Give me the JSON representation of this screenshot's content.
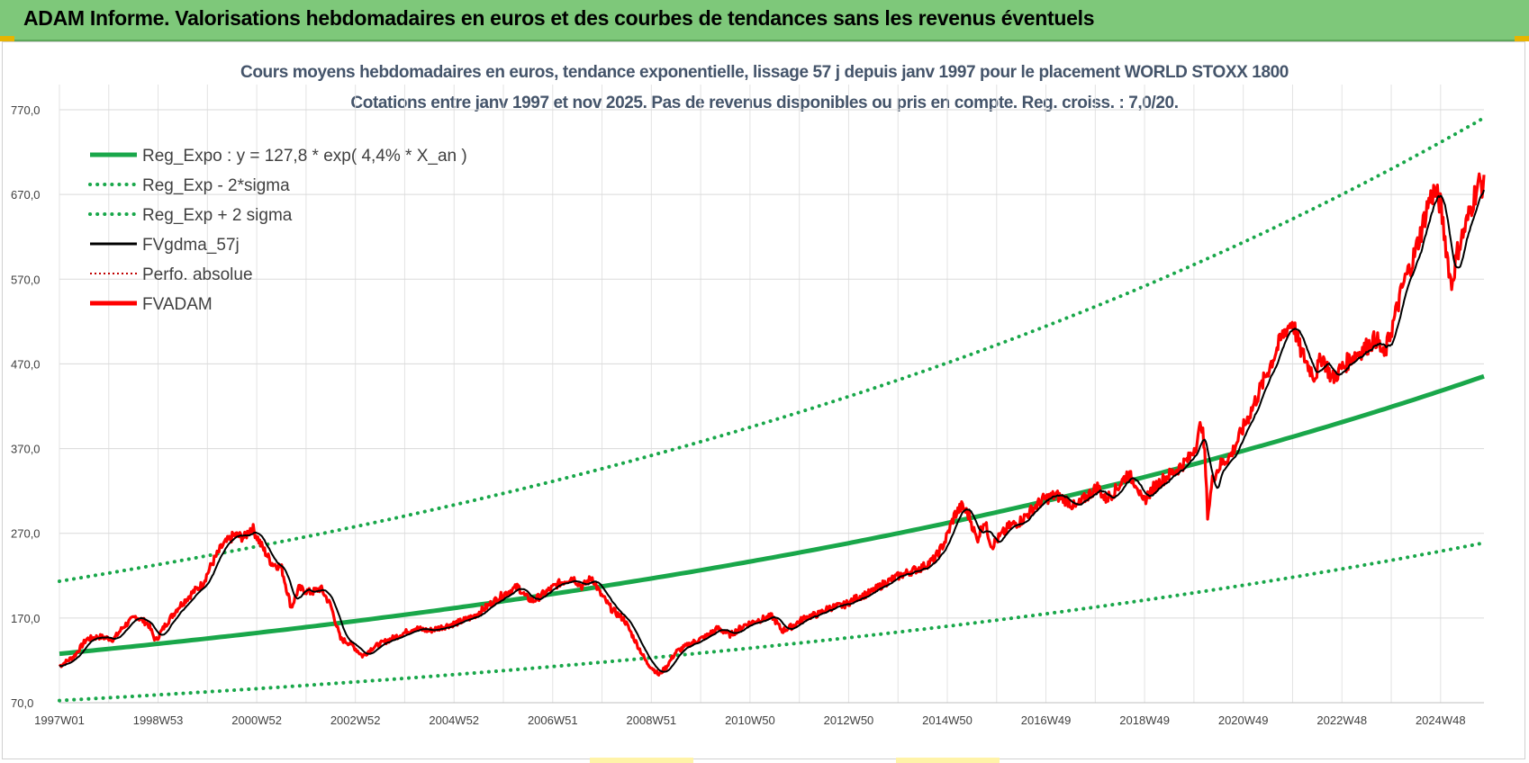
{
  "banner": {
    "title": "ADAM Informe. Valorisations hebdomadaires en euros et des courbes de tendances sans les revenus éventuels"
  },
  "colors": {
    "banner_bg": "#7ec87a",
    "reg_expo": "#19a74a",
    "sigma_lines": "#19a74a",
    "fvgdma": "#000000",
    "perfo": "#c00000",
    "fvadam": "#ff0000",
    "title_text": "#44546a"
  },
  "chart_data": {
    "type": "line",
    "title": "Cours moyens hebdomadaires en euros, tendance exponentielle, lissage 57 j depuis janv 1997 pour le placement WORLD STOXX 1800",
    "subtitle": "Cotations entre janv 1997 et nov 2025. Pas de revenus disponibles ou pris en compte. Reg. croiss. : 7,0/20.",
    "ylim": [
      70,
      770
    ],
    "yticks": [
      "70,0",
      "170,0",
      "270,0",
      "370,0",
      "470,0",
      "570,0",
      "670,0",
      "770,0"
    ],
    "xlim": [
      1997.0,
      2025.88
    ],
    "xticks": [
      {
        "label": "1997W01",
        "x": 1997.0
      },
      {
        "label": "1998W53",
        "x": 1999.0
      },
      {
        "label": "2000W52",
        "x": 2001.0
      },
      {
        "label": "2002W52",
        "x": 2003.0
      },
      {
        "label": "2004W52",
        "x": 2005.0
      },
      {
        "label": "2006W51",
        "x": 2007.0
      },
      {
        "label": "2008W51",
        "x": 2009.0
      },
      {
        "label": "2010W50",
        "x": 2011.0
      },
      {
        "label": "2012W50",
        "x": 2013.0
      },
      {
        "label": "2014W50",
        "x": 2015.0
      },
      {
        "label": "2016W49",
        "x": 2017.0
      },
      {
        "label": "2018W49",
        "x": 2019.0
      },
      {
        "label": "2020W49",
        "x": 2021.0
      },
      {
        "label": "2022W48",
        "x": 2023.0
      },
      {
        "label": "2024W48",
        "x": 2025.0
      }
    ],
    "grid": true,
    "legend_position": "top-left",
    "regression": {
      "a": 127.8,
      "rate": 0.044,
      "sigma_low": 0.568,
      "sigma_high": 1.67
    },
    "series": [
      {
        "name": "Reg_Expo : y = 127,8 * exp( 4,4% *  X_an )",
        "style": "solid-thick",
        "color": "#19a74a",
        "role": "reg"
      },
      {
        "name": "Reg_Exp - 2*sigma",
        "style": "dotted",
        "color": "#19a74a",
        "role": "low"
      },
      {
        "name": "Reg_Exp + 2 sigma",
        "style": "dotted",
        "color": "#19a74a",
        "role": "high"
      },
      {
        "name": "FVgdma_57j",
        "style": "solid",
        "color": "#000000",
        "role": "ma"
      },
      {
        "name": "Perfo. absolue",
        "style": "dotted-thin",
        "color": "#c00000",
        "role": "perfo"
      },
      {
        "name": "FVADAM",
        "style": "solid-thick",
        "color": "#ff0000",
        "role": "price"
      }
    ],
    "price_points": [
      [
        1997.0,
        113
      ],
      [
        1997.3,
        125
      ],
      [
        1997.55,
        145
      ],
      [
        1997.8,
        148
      ],
      [
        1998.1,
        145
      ],
      [
        1998.3,
        160
      ],
      [
        1998.55,
        172
      ],
      [
        1998.8,
        163
      ],
      [
        1998.95,
        143
      ],
      [
        1999.15,
        162
      ],
      [
        1999.4,
        182
      ],
      [
        1999.7,
        200
      ],
      [
        1999.9,
        210
      ],
      [
        2000.1,
        235
      ],
      [
        2000.3,
        255
      ],
      [
        2000.55,
        268
      ],
      [
        2000.75,
        265
      ],
      [
        2000.9,
        278
      ],
      [
        2001.1,
        255
      ],
      [
        2001.3,
        235
      ],
      [
        2001.5,
        230
      ],
      [
        2001.7,
        182
      ],
      [
        2001.85,
        205
      ],
      [
        2002.1,
        200
      ],
      [
        2002.3,
        205
      ],
      [
        2002.5,
        185
      ],
      [
        2002.7,
        145
      ],
      [
        2002.9,
        140
      ],
      [
        2003.15,
        125
      ],
      [
        2003.35,
        135
      ],
      [
        2003.6,
        142
      ],
      [
        2003.9,
        150
      ],
      [
        2004.2,
        158
      ],
      [
        2004.5,
        155
      ],
      [
        2004.8,
        160
      ],
      [
        2005.1,
        165
      ],
      [
        2005.4,
        172
      ],
      [
        2005.7,
        185
      ],
      [
        2006.0,
        198
      ],
      [
        2006.3,
        207
      ],
      [
        2006.45,
        195
      ],
      [
        2006.6,
        190
      ],
      [
        2006.85,
        200
      ],
      [
        2007.1,
        210
      ],
      [
        2007.4,
        218
      ],
      [
        2007.6,
        207
      ],
      [
        2007.8,
        218
      ],
      [
        2007.95,
        200
      ],
      [
        2008.2,
        180
      ],
      [
        2008.45,
        168
      ],
      [
        2008.7,
        140
      ],
      [
        2008.9,
        118
      ],
      [
        2009.15,
        103
      ],
      [
        2009.3,
        112
      ],
      [
        2009.5,
        130
      ],
      [
        2009.8,
        140
      ],
      [
        2010.1,
        148
      ],
      [
        2010.35,
        158
      ],
      [
        2010.6,
        150
      ],
      [
        2010.9,
        162
      ],
      [
        2011.2,
        168
      ],
      [
        2011.45,
        172
      ],
      [
        2011.65,
        155
      ],
      [
        2011.85,
        160
      ],
      [
        2012.1,
        170
      ],
      [
        2012.4,
        175
      ],
      [
        2012.6,
        182
      ],
      [
        2012.9,
        185
      ],
      [
        2013.2,
        195
      ],
      [
        2013.45,
        200
      ],
      [
        2013.7,
        210
      ],
      [
        2013.95,
        218
      ],
      [
        2014.25,
        225
      ],
      [
        2014.5,
        230
      ],
      [
        2014.75,
        240
      ],
      [
        2014.95,
        260
      ],
      [
        2015.15,
        292
      ],
      [
        2015.3,
        302
      ],
      [
        2015.45,
        290
      ],
      [
        2015.6,
        262
      ],
      [
        2015.75,
        285
      ],
      [
        2015.9,
        255
      ],
      [
        2016.05,
        265
      ],
      [
        2016.25,
        278
      ],
      [
        2016.5,
        285
      ],
      [
        2016.75,
        300
      ],
      [
        2016.95,
        310
      ],
      [
        2017.2,
        315
      ],
      [
        2017.45,
        308
      ],
      [
        2017.6,
        300
      ],
      [
        2017.8,
        312
      ],
      [
        2018.05,
        325
      ],
      [
        2018.2,
        310
      ],
      [
        2018.4,
        320
      ],
      [
        2018.65,
        340
      ],
      [
        2018.85,
        328
      ],
      [
        2018.95,
        305
      ],
      [
        2019.15,
        322
      ],
      [
        2019.4,
        335
      ],
      [
        2019.65,
        345
      ],
      [
        2019.9,
        358
      ],
      [
        2020.08,
        380
      ],
      [
        2020.15,
        405
      ],
      [
        2020.22,
        362
      ],
      [
        2020.28,
        290
      ],
      [
        2020.38,
        335
      ],
      [
        2020.55,
        352
      ],
      [
        2020.75,
        362
      ],
      [
        2020.95,
        388
      ],
      [
        2021.2,
        420
      ],
      [
        2021.45,
        455
      ],
      [
        2021.7,
        490
      ],
      [
        2021.85,
        510
      ],
      [
        2022.0,
        520
      ],
      [
        2022.15,
        488
      ],
      [
        2022.3,
        470
      ],
      [
        2022.45,
        455
      ],
      [
        2022.6,
        480
      ],
      [
        2022.8,
        452
      ],
      [
        2023.0,
        465
      ],
      [
        2023.2,
        478
      ],
      [
        2023.45,
        488
      ],
      [
        2023.7,
        500
      ],
      [
        2023.85,
        478
      ],
      [
        2024.05,
        520
      ],
      [
        2024.25,
        565
      ],
      [
        2024.45,
        595
      ],
      [
        2024.6,
        625
      ],
      [
        2024.75,
        660
      ],
      [
        2024.88,
        675
      ],
      [
        2025.0,
        658
      ],
      [
        2025.13,
        600
      ],
      [
        2025.22,
        562
      ],
      [
        2025.35,
        605
      ],
      [
        2025.55,
        640
      ],
      [
        2025.7,
        672
      ],
      [
        2025.8,
        685
      ],
      [
        2025.88,
        678
      ]
    ]
  }
}
